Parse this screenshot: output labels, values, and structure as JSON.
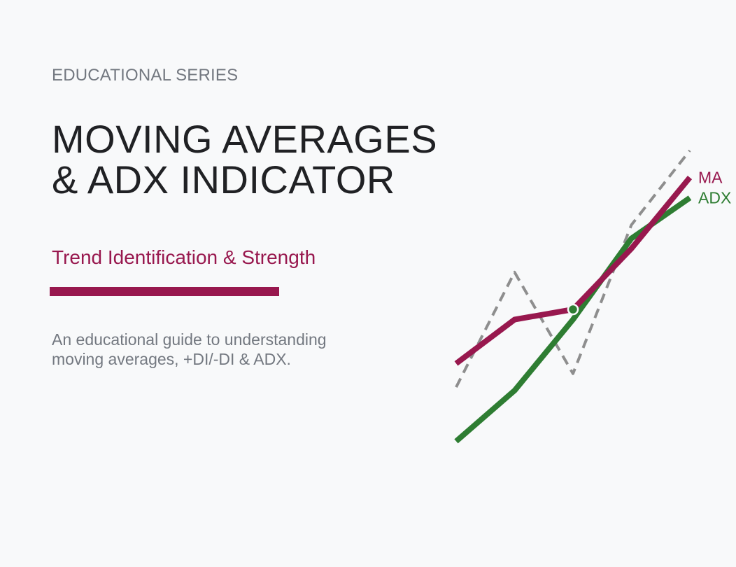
{
  "header": {
    "series": "EDUCATIONAL SERIES",
    "title_line1": "MOVING AVERAGES",
    "title_line2": "& ADX INDICATOR",
    "subtitle": "Trend Identification & Strength",
    "description_line1": "An educational guide to understanding",
    "description_line2": "moving averages, +DI/-DI & ADX."
  },
  "colors": {
    "background": "#f8f9fa",
    "accent": "#98184e",
    "ma": "#98184e",
    "adx": "#2e7d32",
    "price": "#8e8e8e",
    "text_muted": "#737880",
    "text_dark": "#202124"
  },
  "chart_data": {
    "type": "line",
    "x": [
      1,
      2,
      3,
      4,
      5
    ],
    "ylim": [
      0,
      100
    ],
    "grid": false,
    "axes_visible": false,
    "series": [
      {
        "key": "price",
        "name": "",
        "style": "dashed",
        "color": "#8e8e8e",
        "values": [
          30,
          64,
          34,
          78,
          100
        ]
      },
      {
        "key": "ma",
        "name": "MA",
        "style": "solid",
        "color": "#98184e",
        "values": [
          37,
          50,
          53,
          71,
          92
        ]
      },
      {
        "key": "adx",
        "name": "ADX",
        "style": "solid",
        "color": "#2e7d32",
        "values": [
          14,
          29,
          50,
          74,
          86
        ]
      }
    ],
    "markers": [
      {
        "series": "ma",
        "x": 3,
        "y": 53,
        "color": "#2e7d32",
        "meaning": "crossover"
      }
    ]
  }
}
